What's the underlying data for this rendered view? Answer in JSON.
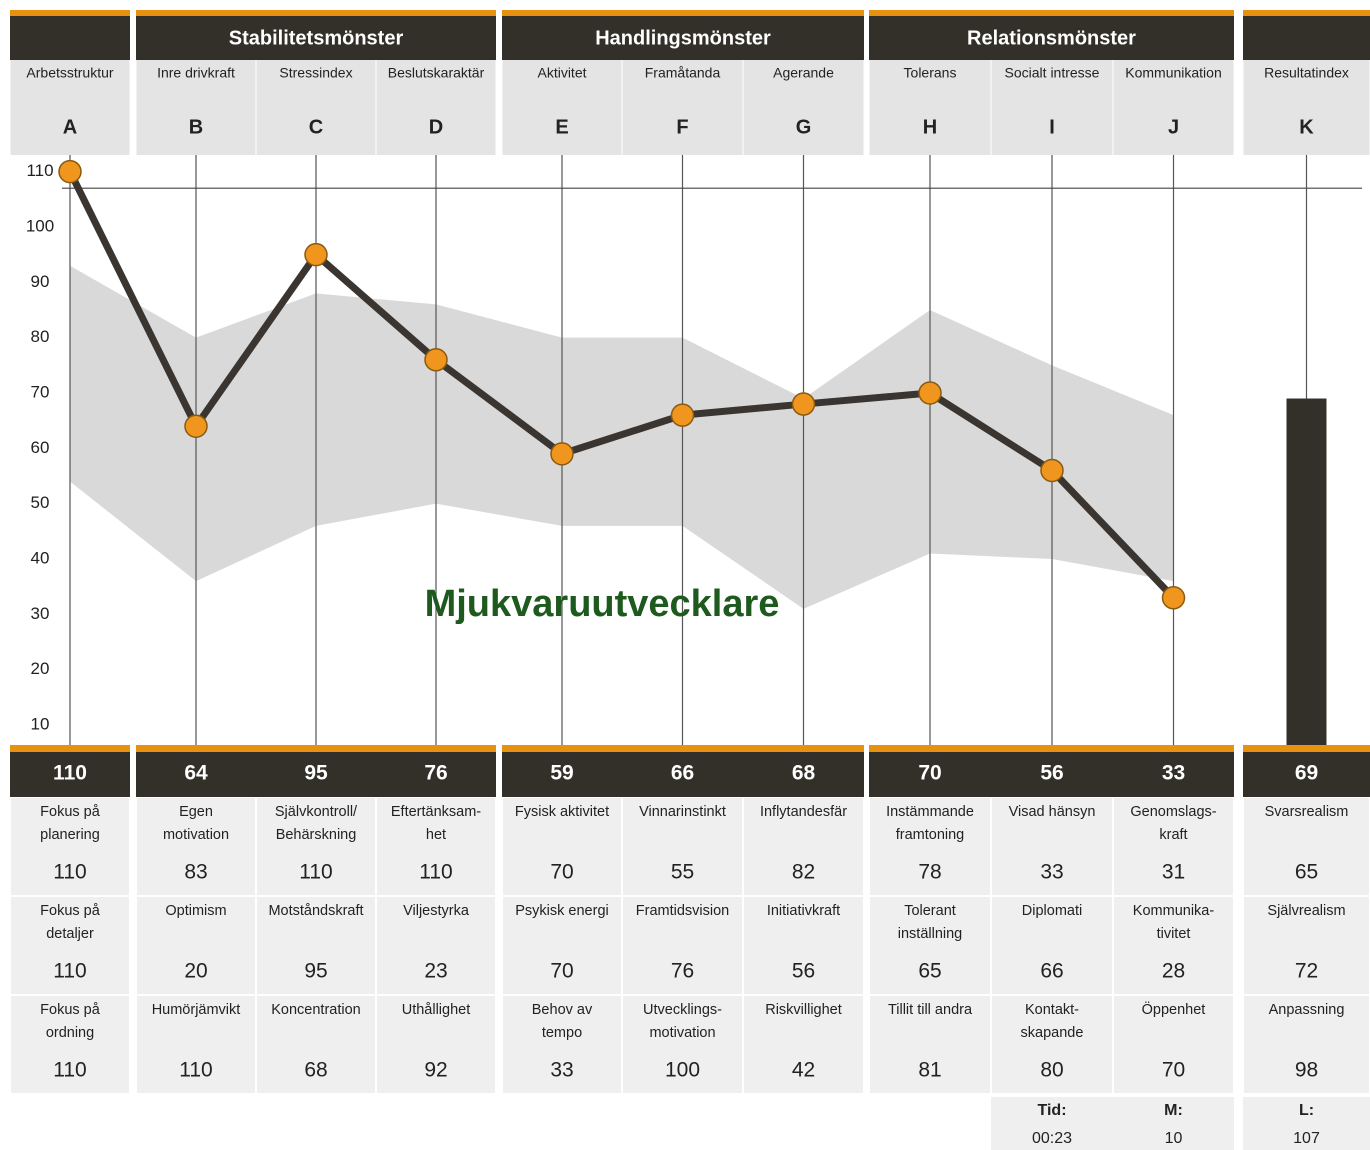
{
  "groups": [
    {
      "title": "Stabilitetsmönster"
    },
    {
      "title": "Handlingsmönster"
    },
    {
      "title": "Relationsmönster"
    }
  ],
  "columns": [
    {
      "name": "Arbetsstruktur",
      "subs": [
        {
          "label": [
            "Fokus på",
            "planering"
          ],
          "value": 110
        },
        {
          "label": [
            "Fokus på",
            "detaljer"
          ],
          "value": 110
        },
        {
          "label": [
            "Fokus på",
            "ordning"
          ],
          "value": 110
        }
      ]
    },
    {
      "name": "Inre drivkraft",
      "subs": [
        {
          "label": [
            "Egen",
            "motivation"
          ],
          "value": 83
        },
        {
          "label": [
            "Optimism"
          ],
          "value": 20
        },
        {
          "label": [
            "Humörjämvikt"
          ],
          "value": 110
        }
      ]
    },
    {
      "name": "Stressindex",
      "subs": [
        {
          "label": [
            "Självkontroll/",
            "Behärskning"
          ],
          "value": 110
        },
        {
          "label": [
            "Motståndskraft"
          ],
          "value": 95
        },
        {
          "label": [
            "Koncentration"
          ],
          "value": 68
        }
      ]
    },
    {
      "name": "Beslutskaraktär",
      "subs": [
        {
          "label": [
            "Eftertänksam-",
            "het"
          ],
          "value": 110
        },
        {
          "label": [
            "Viljestyrka"
          ],
          "value": 23
        },
        {
          "label": [
            "Uthållighet"
          ],
          "value": 92
        }
      ]
    },
    {
      "name": "Aktivitet",
      "subs": [
        {
          "label": [
            "Fysisk aktivitet"
          ],
          "value": 70
        },
        {
          "label": [
            "Psykisk energi"
          ],
          "value": 70
        },
        {
          "label": [
            "Behov av",
            "tempo"
          ],
          "value": 33
        }
      ]
    },
    {
      "name": "Framåtanda",
      "subs": [
        {
          "label": [
            "Vinnarinstinkt"
          ],
          "value": 55
        },
        {
          "label": [
            "Framtidsvision"
          ],
          "value": 76
        },
        {
          "label": [
            "Utvecklings-",
            "motivation"
          ],
          "value": 100
        }
      ]
    },
    {
      "name": "Agerande",
      "subs": [
        {
          "label": [
            "Inflytandesfär"
          ],
          "value": 82
        },
        {
          "label": [
            "Initiativkraft"
          ],
          "value": 56
        },
        {
          "label": [
            "Riskvillighet"
          ],
          "value": 42
        }
      ]
    },
    {
      "name": "Tolerans",
      "subs": [
        {
          "label": [
            "Instämmande",
            "framtoning"
          ],
          "value": 78
        },
        {
          "label": [
            "Tolerant",
            "inställning"
          ],
          "value": 65
        },
        {
          "label": [
            "Tillit till andra"
          ],
          "value": 81
        }
      ]
    },
    {
      "name": "Socialt intresse",
      "subs": [
        {
          "label": [
            "Visad hänsyn"
          ],
          "value": 33
        },
        {
          "label": [
            "Diplomati"
          ],
          "value": 66
        },
        {
          "label": [
            "Kontakt-",
            "skapande"
          ],
          "value": 80
        }
      ]
    },
    {
      "name": "Kommunikation",
      "subs": [
        {
          "label": [
            "Genomslags-",
            "kraft"
          ],
          "value": 31
        },
        {
          "label": [
            "Kommunika-",
            "tivitet"
          ],
          "value": 28
        },
        {
          "label": [
            "Öppenhet"
          ],
          "value": 70
        }
      ]
    },
    {
      "name": "Resultatindex",
      "subs": [
        {
          "label": [
            "Svarsrealism"
          ],
          "value": 65
        },
        {
          "label": [
            "Självrealism"
          ],
          "value": 72
        },
        {
          "label": [
            "Anpassning"
          ],
          "value": 98
        }
      ]
    }
  ],
  "chart_data": [
    {
      "type": "line",
      "annotation": "Mjukvaruutvecklare",
      "categories": [
        "A",
        "B",
        "C",
        "D",
        "E",
        "F",
        "G",
        "H",
        "I",
        "J"
      ],
      "values": [
        110,
        64,
        95,
        76,
        59,
        66,
        68,
        70,
        56,
        33
      ],
      "color": "#3a3530",
      "marker_color": "#f0961e",
      "band": {
        "color": "#d9d9d9",
        "high": [
          93,
          80,
          88,
          86,
          80,
          80,
          69,
          85,
          75,
          66
        ],
        "low": [
          54,
          36,
          46,
          50,
          46,
          46,
          31,
          41,
          40,
          36
        ]
      },
      "ylim": [
        6.4,
        113
      ],
      "yticks": [
        10,
        20,
        30,
        40,
        50,
        60,
        70,
        80,
        90,
        100,
        110
      ]
    },
    {
      "type": "bar",
      "categories": [
        "K"
      ],
      "values": [
        69
      ],
      "color": "#333029",
      "ylim": [
        6.4,
        113
      ]
    }
  ],
  "footer": [
    {
      "label": "Tid:",
      "value": "00:23"
    },
    {
      "label": "M:",
      "value": 10
    },
    {
      "label": "L:",
      "value": 107
    }
  ]
}
